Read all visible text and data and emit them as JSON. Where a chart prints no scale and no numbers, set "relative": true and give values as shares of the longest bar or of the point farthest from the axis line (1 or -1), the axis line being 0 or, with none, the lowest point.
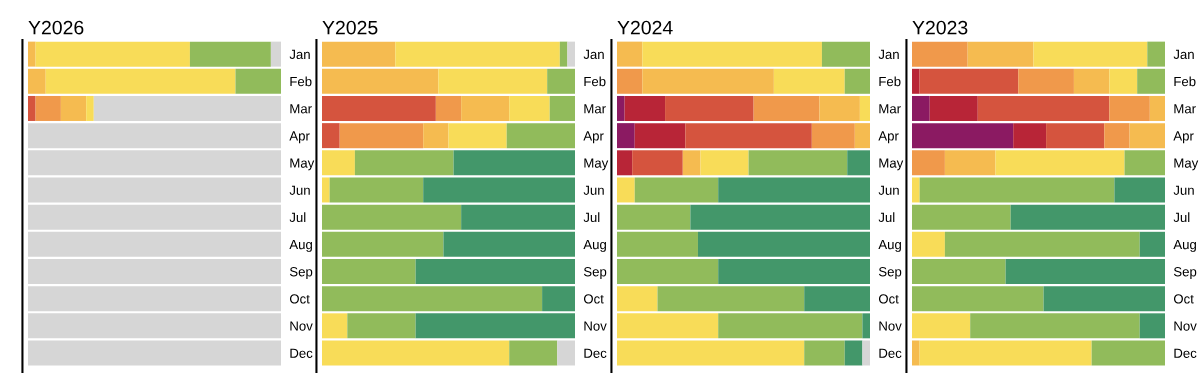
{
  "chart_data": [
    {
      "type": "bar",
      "title": "Y2026",
      "orientation": "horizontal",
      "stacked": true,
      "relative": true,
      "categories": [
        "Jan",
        "Feb",
        "Mar",
        "Apr",
        "May",
        "Jun",
        "Jul",
        "Aug",
        "Sep",
        "Oct",
        "Nov",
        "Dec"
      ],
      "series": [
        {
          "color": "#d5543e",
          "values": [
            null,
            null,
            0.03,
            null,
            null,
            null,
            null,
            null,
            null,
            null,
            null,
            null
          ]
        },
        {
          "color": "#f0994b",
          "values": [
            null,
            null,
            0.1,
            null,
            null,
            null,
            null,
            null,
            null,
            null,
            null,
            null
          ]
        },
        {
          "color": "#f5bb50",
          "values": [
            0.03,
            0.07,
            0.1,
            null,
            null,
            null,
            null,
            null,
            null,
            null,
            null,
            null
          ]
        },
        {
          "color": "#f8dc58",
          "values": [
            0.61,
            0.75,
            0.03,
            null,
            null,
            null,
            null,
            null,
            null,
            null,
            null,
            null
          ]
        },
        {
          "color": "#91bb5b",
          "values": [
            0.32,
            0.18,
            null,
            null,
            null,
            null,
            null,
            null,
            null,
            null,
            null,
            null
          ]
        },
        {
          "color": "#d6d6d6",
          "values": [
            0.04,
            null,
            0.74,
            1,
            1,
            1,
            1,
            1,
            1,
            1,
            1,
            1
          ]
        }
      ]
    },
    {
      "type": "bar",
      "title": "Y2025",
      "orientation": "horizontal",
      "stacked": true,
      "relative": true,
      "categories": [
        "Jan",
        "Feb",
        "Mar",
        "Apr",
        "May",
        "Jun",
        "Jul",
        "Aug",
        "Sep",
        "Oct",
        "Nov",
        "Dec"
      ],
      "series": [
        {
          "color": "#d5543e",
          "values": [
            null,
            null,
            0.45,
            0.07,
            null,
            null,
            null,
            null,
            null,
            null,
            null,
            null
          ]
        },
        {
          "color": "#f0994b",
          "values": [
            null,
            null,
            0.1,
            0.33,
            null,
            null,
            null,
            null,
            null,
            null,
            null,
            null
          ]
        },
        {
          "color": "#f5bb50",
          "values": [
            0.29,
            0.46,
            0.19,
            0.1,
            null,
            null,
            null,
            null,
            null,
            null,
            null,
            null
          ]
        },
        {
          "color": "#f8dc58",
          "values": [
            0.65,
            0.43,
            0.16,
            0.23,
            0.13,
            0.03,
            null,
            null,
            null,
            null,
            0.1,
            0.74
          ]
        },
        {
          "color": "#91bb5b",
          "values": [
            0.03,
            0.11,
            0.1,
            0.27,
            0.39,
            0.37,
            0.55,
            0.48,
            0.37,
            0.87,
            0.27,
            0.19
          ]
        },
        {
          "color": "#43976a",
          "values": [
            null,
            null,
            null,
            null,
            0.48,
            0.6,
            0.45,
            0.52,
            0.63,
            0.13,
            0.63,
            null
          ]
        },
        {
          "color": "#d6d6d6",
          "values": [
            0.03,
            null,
            null,
            null,
            null,
            null,
            null,
            null,
            null,
            null,
            null,
            0.07
          ]
        }
      ]
    },
    {
      "type": "bar",
      "title": "Y2024",
      "orientation": "horizontal",
      "stacked": true,
      "relative": true,
      "categories": [
        "Jan",
        "Feb",
        "Mar",
        "Apr",
        "May",
        "Jun",
        "Jul",
        "Aug",
        "Sep",
        "Oct",
        "Nov",
        "Dec"
      ],
      "series": [
        {
          "color": "#8b1a62",
          "values": [
            null,
            null,
            0.03,
            0.07,
            null,
            null,
            null,
            null,
            null,
            null,
            null,
            null
          ]
        },
        {
          "color": "#b82537",
          "values": [
            null,
            null,
            0.16,
            0.2,
            0.06,
            null,
            null,
            null,
            null,
            null,
            null,
            null
          ]
        },
        {
          "color": "#d5543e",
          "values": [
            null,
            null,
            0.35,
            0.5,
            0.2,
            null,
            null,
            null,
            null,
            null,
            null,
            null
          ]
        },
        {
          "color": "#f0994b",
          "values": [
            null,
            0.1,
            0.26,
            0.17,
            null,
            null,
            null,
            null,
            null,
            null,
            null,
            null
          ]
        },
        {
          "color": "#f5bb50",
          "values": [
            0.1,
            0.52,
            0.16,
            0.06,
            0.07,
            null,
            null,
            null,
            null,
            null,
            null,
            null
          ]
        },
        {
          "color": "#f8dc58",
          "values": [
            0.71,
            0.28,
            0.04,
            null,
            0.19,
            0.07,
            null,
            null,
            null,
            0.16,
            0.4,
            0.74
          ]
        },
        {
          "color": "#91bb5b",
          "values": [
            0.19,
            0.1,
            null,
            null,
            0.39,
            0.33,
            0.29,
            0.32,
            0.4,
            0.58,
            0.57,
            0.16
          ]
        },
        {
          "color": "#43976a",
          "values": [
            null,
            null,
            null,
            null,
            0.09,
            0.6,
            0.71,
            0.68,
            0.6,
            0.26,
            0.03,
            0.07
          ]
        },
        {
          "color": "#d6d6d6",
          "values": [
            null,
            null,
            null,
            null,
            null,
            null,
            null,
            null,
            null,
            null,
            null,
            0.03
          ]
        }
      ]
    },
    {
      "type": "bar",
      "title": "Y2023",
      "orientation": "horizontal",
      "stacked": true,
      "relative": true,
      "categories": [
        "Jan",
        "Feb",
        "Mar",
        "Apr",
        "May",
        "Jun",
        "Jul",
        "Aug",
        "Sep",
        "Oct",
        "Nov",
        "Dec"
      ],
      "series": [
        {
          "color": "#8b1a62",
          "values": [
            null,
            null,
            0.07,
            0.4,
            null,
            null,
            null,
            null,
            null,
            null,
            null,
            null
          ]
        },
        {
          "color": "#b82537",
          "values": [
            null,
            0.03,
            0.19,
            0.13,
            null,
            null,
            null,
            null,
            null,
            null,
            null,
            null
          ]
        },
        {
          "color": "#d5543e",
          "values": [
            null,
            0.39,
            0.52,
            0.23,
            null,
            null,
            null,
            null,
            null,
            null,
            null,
            null
          ]
        },
        {
          "color": "#f0994b",
          "values": [
            0.22,
            0.22,
            0.16,
            0.1,
            0.13,
            null,
            null,
            null,
            null,
            null,
            null,
            null
          ]
        },
        {
          "color": "#f5bb50",
          "values": [
            0.26,
            0.14,
            0.06,
            0.14,
            0.2,
            null,
            null,
            null,
            null,
            null,
            null,
            0.03
          ]
        },
        {
          "color": "#f8dc58",
          "values": [
            0.45,
            0.11,
            null,
            null,
            0.51,
            0.03,
            null,
            0.13,
            null,
            null,
            0.23,
            0.68
          ]
        },
        {
          "color": "#91bb5b",
          "values": [
            0.07,
            0.11,
            null,
            null,
            0.16,
            0.77,
            0.39,
            0.77,
            0.37,
            0.52,
            0.67,
            0.29
          ]
        },
        {
          "color": "#43976a",
          "values": [
            null,
            null,
            null,
            null,
            null,
            0.2,
            0.61,
            0.1,
            0.63,
            0.48,
            0.1,
            null
          ]
        }
      ]
    }
  ]
}
